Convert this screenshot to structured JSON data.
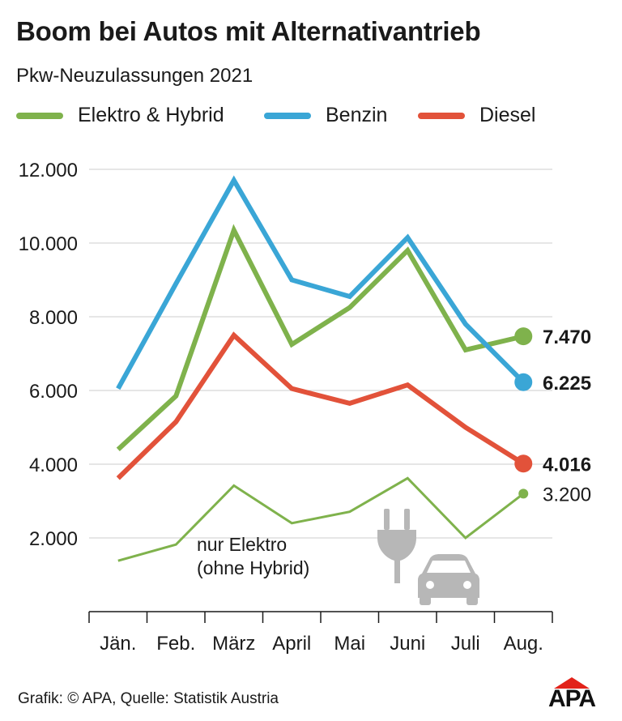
{
  "title": "Boom bei Autos mit Alternativantrieb",
  "subtitle": "Pkw-Neuzulassungen 2021",
  "footer": "Grafik: © APA, Quelle: Statistik Austria",
  "logo": "APA",
  "colors": {
    "elektro_hybrid": "#7fb24c",
    "benzin": "#3aa6d6",
    "diesel": "#e2523a",
    "nur_elektro": "#7fb24c",
    "grid": "#cccccc",
    "icon": "#b7b7b7",
    "logo_accent": "#e2231a"
  },
  "icons": [
    "plug-icon",
    "car-icon"
  ],
  "chart_data": {
    "type": "line",
    "title": "Boom bei Autos mit Alternativantrieb",
    "subtitle": "Pkw-Neuzulassungen 2021",
    "xlabel": "",
    "ylabel": "",
    "categories": [
      "Jän.",
      "Feb.",
      "März",
      "April",
      "Mai",
      "Juni",
      "Juli",
      "Aug."
    ],
    "ylim": [
      0,
      12000
    ],
    "yticks": [
      2000,
      4000,
      6000,
      8000,
      10000,
      12000
    ],
    "ytick_labels": [
      "2.000",
      "4.000",
      "6.000",
      "8.000",
      "10.000",
      "12.000"
    ],
    "grid": true,
    "legend_position": "top",
    "series": [
      {
        "name": "Elektro & Hybrid",
        "key": "elektro_hybrid",
        "values": [
          4400,
          5850,
          10350,
          7250,
          8250,
          9800,
          7100,
          7470
        ],
        "end_label": "7.470",
        "end_bold": true,
        "width": 6
      },
      {
        "name": "Benzin",
        "key": "benzin",
        "values": [
          6050,
          8900,
          11700,
          9000,
          8550,
          10150,
          7800,
          6225
        ],
        "end_label": "6.225",
        "end_bold": true,
        "width": 6
      },
      {
        "name": "Diesel",
        "key": "diesel",
        "values": [
          3620,
          5150,
          7500,
          6050,
          5650,
          6150,
          5000,
          4016
        ],
        "end_label": "4.016",
        "end_bold": true,
        "width": 6
      },
      {
        "name": "nur Elektro",
        "key": "nur_elektro",
        "values": [
          1380,
          1820,
          3420,
          2400,
          2710,
          3620,
          2000,
          3200
        ],
        "end_label": "3.200",
        "end_bold": false,
        "width": 3
      }
    ],
    "annotation": [
      "nur Elektro",
      "(ohne Hybrid)"
    ]
  }
}
